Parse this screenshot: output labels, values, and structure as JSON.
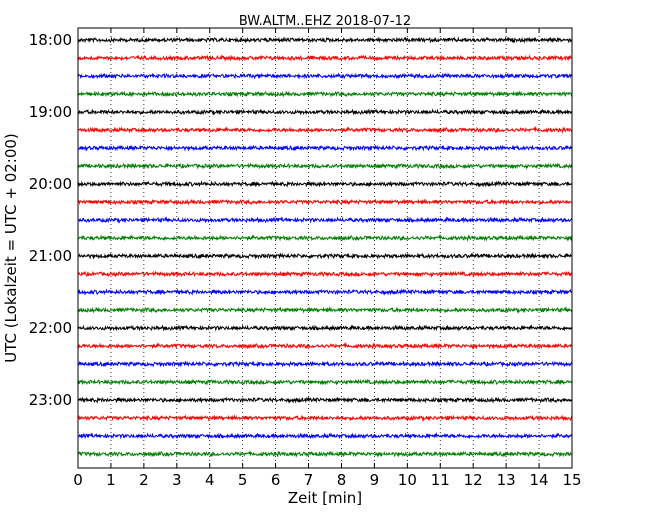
{
  "chart_data": {
    "type": "line",
    "title": "BW.ALTM..EHZ 2018-07-12",
    "xlabel": "Zeit  [min]",
    "ylabel": "UTC (Lokalzeit = UTC + 02:00)",
    "xlim": [
      0,
      15
    ],
    "x_ticks": [
      0,
      1,
      2,
      3,
      4,
      5,
      6,
      7,
      8,
      9,
      10,
      11,
      12,
      13,
      14,
      15
    ],
    "y_tick_labels": [
      "18:00",
      "19:00",
      "20:00",
      "21:00",
      "22:00",
      "23:00"
    ],
    "grid": "vertical-dotted",
    "trace_colors": [
      "#000000",
      "#ff0000",
      "#0000ff",
      "#008000"
    ],
    "traces": [
      {
        "start": "18:00",
        "color": "#000000"
      },
      {
        "start": "18:15",
        "color": "#ff0000"
      },
      {
        "start": "18:30",
        "color": "#0000ff"
      },
      {
        "start": "18:45",
        "color": "#008000"
      },
      {
        "start": "19:00",
        "color": "#000000"
      },
      {
        "start": "19:15",
        "color": "#ff0000"
      },
      {
        "start": "19:30",
        "color": "#0000ff"
      },
      {
        "start": "19:45",
        "color": "#008000"
      },
      {
        "start": "20:00",
        "color": "#000000"
      },
      {
        "start": "20:15",
        "color": "#ff0000"
      },
      {
        "start": "20:30",
        "color": "#0000ff"
      },
      {
        "start": "20:45",
        "color": "#008000"
      },
      {
        "start": "21:00",
        "color": "#000000"
      },
      {
        "start": "21:15",
        "color": "#ff0000"
      },
      {
        "start": "21:30",
        "color": "#0000ff"
      },
      {
        "start": "21:45",
        "color": "#008000"
      },
      {
        "start": "22:00",
        "color": "#000000"
      },
      {
        "start": "22:15",
        "color": "#ff0000"
      },
      {
        "start": "22:30",
        "color": "#0000ff"
      },
      {
        "start": "22:45",
        "color": "#008000"
      },
      {
        "start": "23:00",
        "color": "#000000"
      },
      {
        "start": "23:15",
        "color": "#ff0000"
      },
      {
        "start": "23:30",
        "color": "#0000ff"
      },
      {
        "start": "23:45",
        "color": "#008000"
      }
    ]
  }
}
